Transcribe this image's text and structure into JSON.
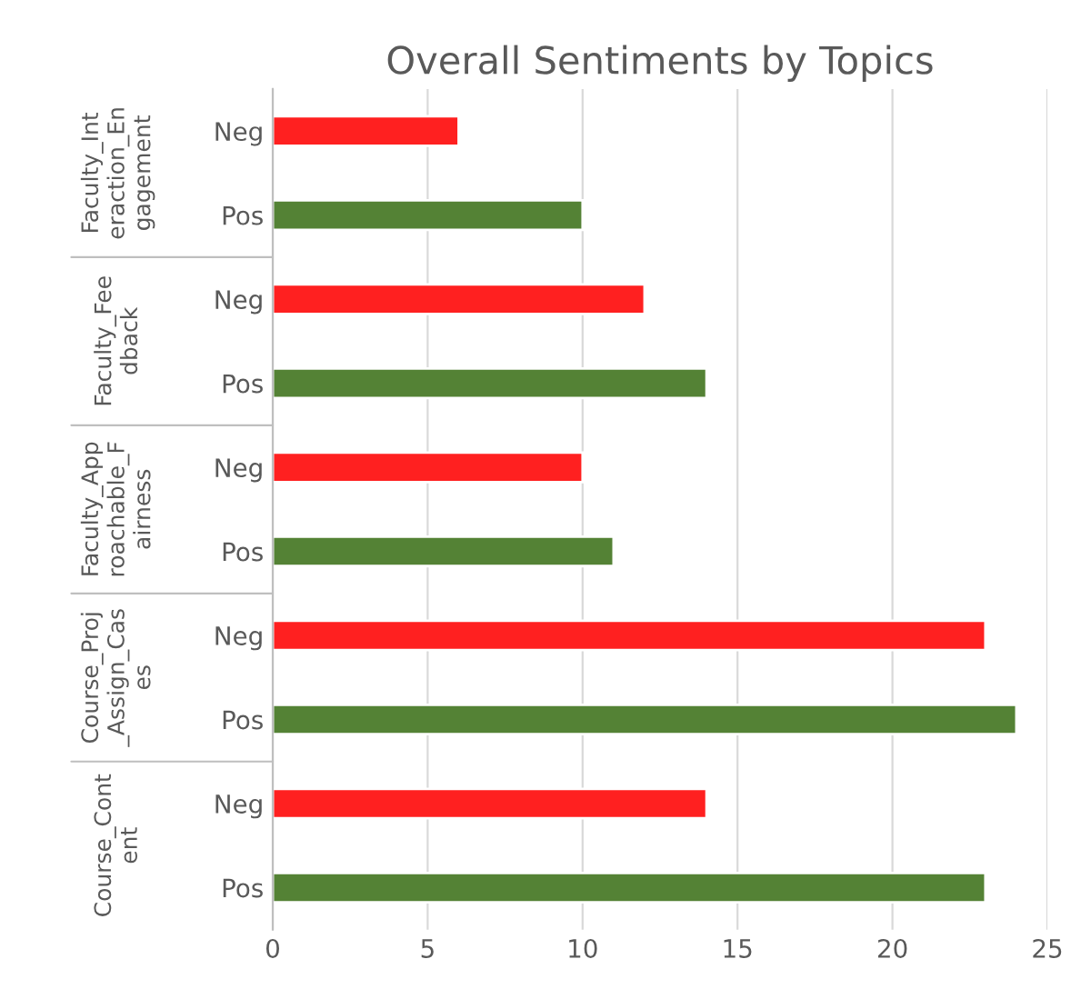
{
  "chart_data": {
    "type": "bar",
    "orientation": "horizontal",
    "title": "Overall Sentiments by Topics",
    "categories": [
      "Neg",
      "Pos",
      "Neg",
      "Pos",
      "Neg",
      "Pos",
      "Neg",
      "Pos",
      "Neg",
      "Pos"
    ],
    "values": [
      6,
      10,
      12,
      14,
      10,
      11,
      23,
      24,
      14,
      23
    ],
    "colors": [
      "#ff2020",
      "#548235",
      "#ff2020",
      "#548235",
      "#ff2020",
      "#548235",
      "#ff2020",
      "#548235",
      "#ff2020",
      "#548235"
    ],
    "annotations": [
      "Faculty_Interaction_Engagement",
      "Faculty_Feedback",
      "Faculty_Approachable_Fairness",
      "Course_Proj_Assign_Cases",
      "Course_Content"
    ],
    "xlim": [
      0,
      25
    ],
    "xticks": [
      0,
      5,
      10,
      15,
      20,
      25
    ],
    "grid": "x"
  }
}
